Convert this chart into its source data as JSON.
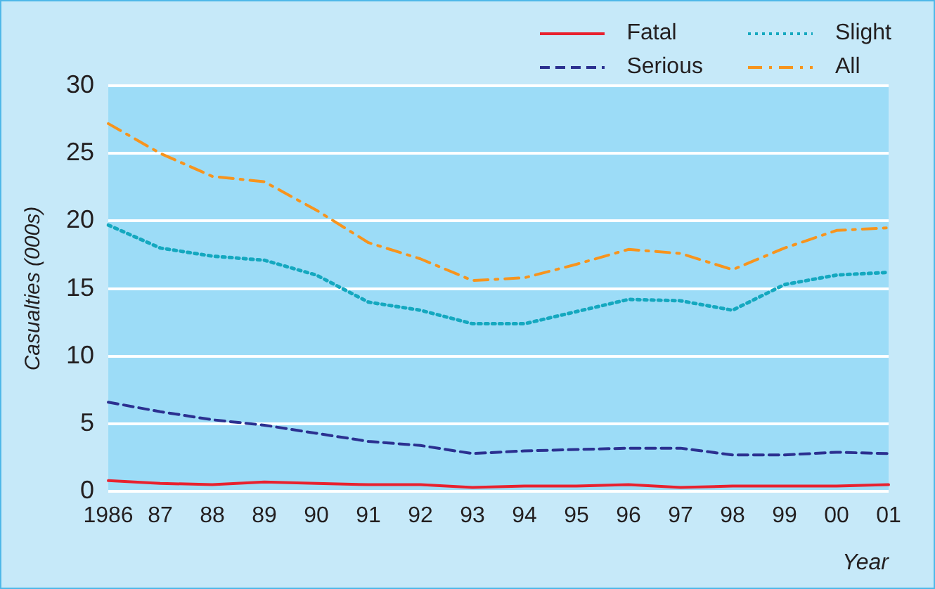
{
  "chart_data": {
    "type": "line",
    "ylabel": "Casualties (000s)",
    "xlabel": "Year",
    "categories": [
      "1986",
      "87",
      "88",
      "89",
      "90",
      "91",
      "92",
      "93",
      "94",
      "95",
      "96",
      "97",
      "98",
      "99",
      "00",
      "01"
    ],
    "series": [
      {
        "name": "Fatal",
        "color": "#e8212e",
        "line_style": "solid",
        "values": [
          0.8,
          0.6,
          0.5,
          0.7,
          0.6,
          0.5,
          0.5,
          0.3,
          0.4,
          0.4,
          0.5,
          0.3,
          0.4,
          0.4,
          0.4,
          0.5
        ]
      },
      {
        "name": "Serious",
        "color": "#2b3090",
        "line_style": "dashed",
        "values": [
          6.6,
          5.9,
          5.3,
          4.9,
          4.3,
          3.7,
          3.4,
          2.8,
          3.0,
          3.1,
          3.2,
          3.2,
          2.7,
          2.7,
          2.9,
          2.8
        ]
      },
      {
        "name": "Slight",
        "color": "#14a8bf",
        "line_style": "dotted",
        "values": [
          19.7,
          18.0,
          17.4,
          17.1,
          16.0,
          14.0,
          13.4,
          12.4,
          12.4,
          13.3,
          14.2,
          14.1,
          13.4,
          15.3,
          16.0,
          16.2
        ]
      },
      {
        "name": "All",
        "color": "#f7941d",
        "line_style": "dashdot",
        "values": [
          27.2,
          25.0,
          23.3,
          22.9,
          20.8,
          18.4,
          17.2,
          15.6,
          15.8,
          16.8,
          17.9,
          17.6,
          16.4,
          18.0,
          19.3,
          19.5
        ]
      }
    ],
    "ylim": [
      0,
      30
    ],
    "yticks": [
      0,
      5,
      10,
      15,
      20,
      25,
      30
    ],
    "grid": "y",
    "legend": "top right",
    "marker": "none"
  }
}
